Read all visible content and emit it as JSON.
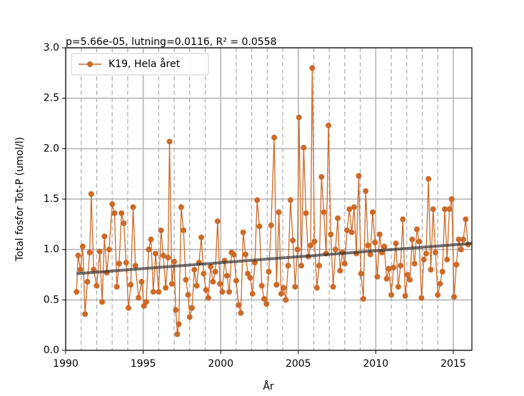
{
  "chart_data": {
    "type": "line",
    "title": "p=5.66e-05, lutning=0.0116, R² = 0.0558",
    "x_label": "År",
    "y_label": "Total fosfor Tot-P (umol/l)",
    "xlim": [
      1990,
      2016.2
    ],
    "ylim": [
      0,
      3
    ],
    "xticks": [
      1990,
      1995,
      2000,
      2005,
      2010,
      2015
    ],
    "minor_xticks": [
      1991,
      1992,
      1993,
      1994,
      1996,
      1997,
      1998,
      1999,
      2001,
      2002,
      2003,
      2004,
      2006,
      2007,
      2008,
      2009,
      2011,
      2012,
      2013,
      2014
    ],
    "yticks": [
      {
        "value": 0,
        "label": "0.0"
      },
      {
        "value": 0.5,
        "label": "0.5"
      },
      {
        "value": 1,
        "label": "1.0"
      },
      {
        "value": 1.5,
        "label": "1.5"
      },
      {
        "value": 2,
        "label": "2.0"
      },
      {
        "value": 2.5,
        "label": "2.5"
      },
      {
        "value": 3,
        "label": "3.0"
      }
    ],
    "grid": true,
    "legend": "upper left",
    "x": [
      1990.7,
      1990.8,
      1990.95,
      1991.1,
      1991.25,
      1991.4,
      1991.55,
      1991.65,
      1991.8,
      1992.0,
      1992.2,
      1992.35,
      1992.5,
      1992.65,
      1992.8,
      1993.0,
      1993.15,
      1993.3,
      1993.45,
      1993.6,
      1993.75,
      1993.9,
      1994.05,
      1994.2,
      1994.35,
      1994.5,
      1994.7,
      1994.9,
      1995.05,
      1995.2,
      1995.35,
      1995.5,
      1995.65,
      1995.8,
      1996.0,
      1996.15,
      1996.3,
      1996.45,
      1996.6,
      1996.7,
      1996.85,
      1997.0,
      1997.1,
      1997.2,
      1997.3,
      1997.45,
      1997.6,
      1997.75,
      1997.9,
      1998.0,
      1998.15,
      1998.3,
      1998.45,
      1998.6,
      1998.75,
      1998.9,
      1999.05,
      1999.2,
      1999.35,
      1999.5,
      1999.65,
      1999.8,
      1999.95,
      2000.1,
      2000.25,
      2000.4,
      2000.55,
      2000.7,
      2000.85,
      2001.0,
      2001.15,
      2001.3,
      2001.45,
      2001.6,
      2001.75,
      2001.9,
      2002.05,
      2002.2,
      2002.35,
      2002.5,
      2002.65,
      2002.8,
      2002.95,
      2003.1,
      2003.25,
      2003.45,
      2003.6,
      2003.75,
      2003.9,
      2004.05,
      2004.2,
      2004.35,
      2004.5,
      2004.65,
      2004.8,
      2004.95,
      2005.05,
      2005.2,
      2005.35,
      2005.5,
      2005.65,
      2005.8,
      2005.9,
      2006.05,
      2006.2,
      2006.35,
      2006.5,
      2006.65,
      2006.8,
      2006.95,
      2007.1,
      2007.25,
      2007.4,
      2007.55,
      2007.7,
      2007.85,
      2008.0,
      2008.15,
      2008.3,
      2008.45,
      2008.6,
      2008.75,
      2008.9,
      2009.05,
      2009.2,
      2009.35,
      2009.5,
      2009.65,
      2009.8,
      2009.95,
      2010.1,
      2010.25,
      2010.4,
      2010.55,
      2010.7,
      2010.85,
      2011.0,
      2011.15,
      2011.3,
      2011.45,
      2011.6,
      2011.75,
      2011.9,
      2012.05,
      2012.2,
      2012.35,
      2012.5,
      2012.65,
      2012.8,
      2012.95,
      2013.1,
      2013.25,
      2013.4,
      2013.55,
      2013.7,
      2013.85,
      2014.0,
      2014.15,
      2014.3,
      2014.45,
      2014.6,
      2014.75,
      2014.9,
      2015.05,
      2015.2,
      2015.35,
      2015.5,
      2015.65,
      2015.8,
      2015.95
    ],
    "series": [
      {
        "name": "K19, Hela året",
        "color": "#cc6a28",
        "values": [
          0.58,
          0.94,
          0.8,
          1.03,
          0.36,
          0.68,
          0.97,
          1.55,
          0.8,
          0.64,
          0.98,
          0.48,
          1.13,
          0.77,
          1.0,
          1.45,
          1.36,
          0.63,
          0.86,
          1.36,
          1.26,
          0.87,
          0.42,
          0.65,
          1.42,
          0.84,
          0.52,
          0.68,
          0.44,
          0.48,
          1.0,
          1.1,
          0.58,
          0.96,
          0.58,
          1.19,
          0.94,
          0.62,
          0.92,
          2.07,
          0.66,
          0.88,
          0.4,
          0.16,
          0.26,
          1.42,
          1.19,
          0.7,
          0.55,
          0.33,
          0.42,
          0.8,
          0.64,
          0.87,
          1.12,
          0.76,
          0.6,
          0.52,
          0.83,
          0.68,
          0.78,
          1.28,
          0.66,
          0.58,
          0.89,
          0.74,
          0.58,
          0.97,
          0.95,
          0.69,
          0.45,
          0.37,
          1.17,
          0.95,
          0.76,
          0.72,
          0.56,
          0.87,
          1.49,
          1.23,
          0.64,
          0.51,
          0.46,
          0.78,
          1.24,
          2.11,
          0.65,
          1.37,
          0.56,
          0.62,
          0.5,
          0.84,
          1.49,
          1.09,
          0.63,
          1.0,
          2.31,
          0.84,
          2.01,
          1.36,
          0.93,
          1.04,
          2.8,
          1.08,
          0.62,
          0.84,
          1.72,
          1.37,
          0.96,
          2.23,
          1.15,
          0.63,
          1.0,
          1.31,
          0.79,
          0.97,
          0.86,
          1.19,
          1.4,
          1.17,
          1.42,
          0.96,
          1.73,
          0.76,
          0.51,
          1.58,
          1.04,
          0.95,
          1.37,
          1.07,
          0.73,
          1.15,
          0.97,
          1.03,
          0.71,
          0.81,
          0.55,
          0.82,
          1.06,
          0.63,
          0.84,
          1.3,
          0.54,
          0.75,
          0.7,
          1.1,
          0.86,
          1.2,
          1.08,
          0.52,
          0.9,
          0.96,
          1.7,
          0.8,
          1.4,
          0.97,
          0.55,
          0.66,
          0.78,
          1.4,
          0.9,
          1.4,
          1.5,
          0.53,
          0.85,
          1.1,
          1.0,
          1.1,
          1.3,
          1.05
        ]
      }
    ],
    "trend": {
      "x": [
        1990.7,
        2016.2
      ],
      "values": [
        0.76,
        1.06
      ],
      "color": "#333333"
    }
  }
}
